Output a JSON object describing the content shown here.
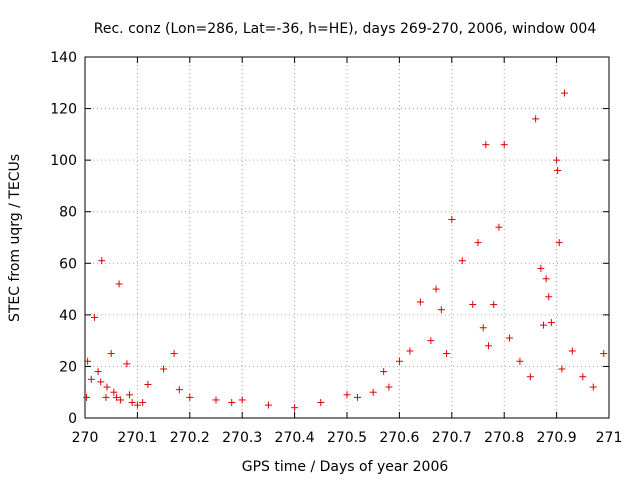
{
  "chart_data": {
    "type": "scatter",
    "title": "Rec. conz (Lon=286, Lat=-36, h=HE), days 269-270, 2006, window 004",
    "xlabel": "GPS time / Days of year 2006",
    "ylabel": "STEC from uqrg / TECUs",
    "xlim": [
      270,
      271
    ],
    "ylim": [
      0,
      140
    ],
    "x_ticks": [
      270,
      270.1,
      270.2,
      270.3,
      270.4,
      270.5,
      270.6,
      270.7,
      270.8,
      270.9,
      271
    ],
    "x_tick_labels": [
      "270",
      "270.1",
      "270.2",
      "270.3",
      "270.4",
      "270.5",
      "270.6",
      "270.7",
      "270.8",
      "270.9",
      "271"
    ],
    "y_ticks": [
      0,
      20,
      40,
      60,
      80,
      100,
      120,
      140
    ],
    "y_tick_labels": [
      "0",
      "20",
      "40",
      "60",
      "80",
      "100",
      "120",
      "140"
    ],
    "grid": true,
    "marker": "+",
    "color": "#e00000",
    "series": [
      {
        "name": "STEC",
        "x": [
          270.003,
          270.005,
          270.012,
          270.018,
          270.025,
          270.03,
          270.032,
          270.04,
          270.042,
          270.05,
          270.055,
          270.06,
          270.065,
          270.068,
          270.08,
          270.085,
          270.09,
          270.1,
          270.11,
          270.12,
          270.15,
          270.17,
          270.18,
          270.2,
          270.25,
          270.28,
          270.3,
          270.35,
          270.4,
          270.45,
          270.5,
          270.52,
          270.55,
          270.57,
          270.58,
          270.6,
          270.62,
          270.64,
          270.66,
          270.67,
          270.68,
          270.69,
          270.7,
          270.72,
          270.74,
          270.75,
          270.76,
          270.765,
          270.77,
          270.78,
          270.79,
          270.8,
          270.81,
          270.83,
          270.85,
          270.86,
          270.87,
          270.875,
          270.88,
          270.885,
          270.89,
          270.9,
          270.902,
          270.905,
          270.91,
          270.915,
          270.93,
          270.95,
          270.97,
          270.99
        ],
        "y": [
          8,
          22,
          15,
          39,
          18,
          14,
          61,
          8,
          12,
          25,
          10,
          8,
          52,
          7,
          21,
          9,
          6,
          5,
          6,
          13,
          19,
          25,
          11,
          8,
          7,
          6,
          7,
          5,
          4,
          6,
          9,
          8,
          10,
          18,
          12,
          22,
          26,
          45,
          30,
          50,
          42,
          25,
          77,
          61,
          44,
          68,
          35,
          106,
          28,
          44,
          74,
          106,
          31,
          22,
          16,
          116,
          58,
          36,
          54,
          47,
          37,
          100,
          96,
          68,
          19,
          126,
          26,
          16,
          12,
          25
        ]
      }
    ]
  }
}
